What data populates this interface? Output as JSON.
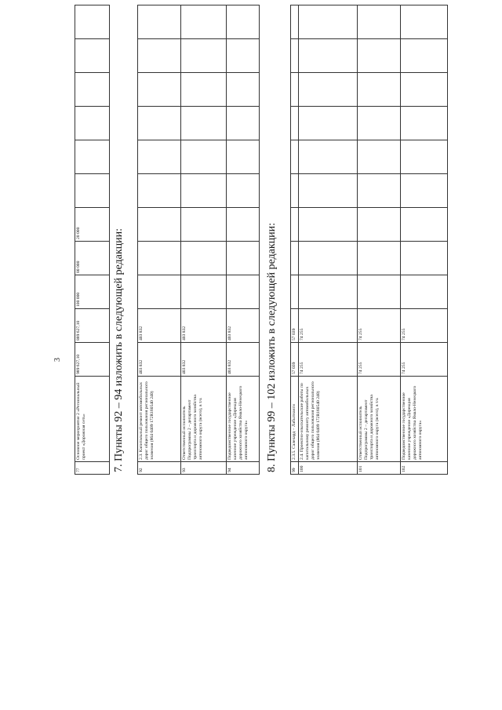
{
  "page_number": "3",
  "value_columns": 11,
  "table_77": {
    "rows": [
      {
        "num": "77",
        "name": "Основное мероприятие 2 «Региональный проект «Дорожная сеть»",
        "values": [
          "989 627,10",
          "889 627,10",
          "100 000",
          "80 000",
          "20 000"
        ]
      }
    ]
  },
  "heading_7": "7. Пункты 92 – 94 изложить в следующей редакции:",
  "table_92_94": {
    "rows": [
      {
        "num": "92",
        "name": "2.3. Капитальный ремонт автомобильных дорог общего пользования регионального значения (864 0409 172R160540 240)",
        "values": [
          "403 832",
          "403 832"
        ]
      },
      {
        "num": "93",
        "name": "Ответственный исполнитель Подпрограммы 2 – департамент транспорта и дорожного хозяйства автономного округа (всего), в т.ч.",
        "values": [
          "403 832",
          "403 832"
        ]
      },
      {
        "num": "94",
        "name": "Подведомственное государственное казенное учреждение «Дирекция дорожного хозяйства Ямало-Ненецкого автономного округа»",
        "values": [
          "403 832",
          "403 832"
        ]
      }
    ]
  },
  "heading_8": "8. Пункты 99 – 102 изложить в следующей редакции:",
  "table_99_102": {
    "rows": [
      {
        "num": "99",
        "name": "2.3.5. Салехард – Лабытнанги",
        "values": [
          "57 039",
          "57 039"
        ]
      },
      {
        "num": "100",
        "name": "2.4. Проектно-изыскательские работы по капитальному ремонту автомобильных дорог общего пользования регионального значения (864 0409 172R160540 240)",
        "values": [
          "74 255",
          "74 255"
        ]
      },
      {
        "num": "101",
        "name": "Ответственный исполнитель Подпрограммы 2 – департамент транспорта и дорожного хозяйства автономного округа (всего), в т.ч.",
        "values": [
          "74 255",
          "74 255"
        ]
      },
      {
        "num": "102",
        "name": "Подведомственное государственное казенное учреждение «Дирекция дорожного хозяйства Ямало-Ненецкого автономного округа»",
        "values": [
          "74 255",
          "74 255"
        ]
      }
    ]
  }
}
